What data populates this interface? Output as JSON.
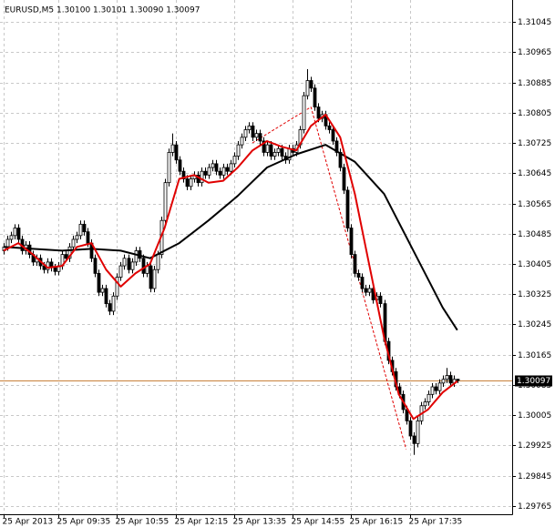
{
  "chart_data": {
    "type": "candlestick",
    "title": "EURUSD,M5  1.30100 1.30101 1.30090 1.30097",
    "up_color": "#ffffff",
    "down_color": "#000000",
    "outline_color": "#000000",
    "grid": true,
    "xlim": [
      -1,
      139
    ],
    "ylim": [
      1.29743,
      1.31103
    ],
    "yticks": [
      1.31045,
      1.30965,
      1.30885,
      1.30805,
      1.30725,
      1.30645,
      1.30565,
      1.30485,
      1.30405,
      1.30325,
      1.30245,
      1.30165,
      1.30085,
      1.30005,
      1.29925,
      1.29845,
      1.29765
    ],
    "xticks": [
      {
        "value": 0,
        "label": "25 Apr 2013"
      },
      {
        "value": 15,
        "label": "25 Apr 09:35"
      },
      {
        "value": 31,
        "label": "25 Apr 10:55"
      },
      {
        "value": 47,
        "label": "25 Apr 12:15"
      },
      {
        "value": 63,
        "label": "25 Apr 13:35"
      },
      {
        "value": 79,
        "label": "25 Apr 14:55"
      },
      {
        "value": 95,
        "label": "25 Apr 16:15"
      },
      {
        "value": 111,
        "label": "25 Apr 17:35"
      }
    ],
    "open": [
      1.3044,
      1.3045,
      1.3047,
      1.3048,
      1.305,
      1.3047,
      1.3044,
      1.30455,
      1.3043,
      1.3041,
      1.3042,
      1.304,
      1.3039,
      1.3041,
      1.30395,
      1.30385,
      1.304,
      1.3043,
      1.3042,
      1.3045,
      1.3047,
      1.3048,
      1.3051,
      1.3049,
      1.3046,
      1.3042,
      1.3038,
      1.3033,
      1.3034,
      1.303,
      1.3028,
      1.3032,
      1.3037,
      1.304,
      1.3042,
      1.3039,
      1.3041,
      1.3044,
      1.3042,
      1.3038,
      1.304,
      1.3034,
      1.3039,
      1.3043,
      1.3052,
      1.3062,
      1.307,
      1.3072,
      1.3068,
      1.3065,
      1.3063,
      1.3061,
      1.3063,
      1.3064,
      1.3062,
      1.3065,
      1.3064,
      1.3066,
      1.3067,
      1.3065,
      1.3064,
      1.3066,
      1.3065,
      1.3067,
      1.3069,
      1.3072,
      1.3074,
      1.3076,
      1.3077,
      1.3074,
      1.3075,
      1.3073,
      1.307,
      1.3072,
      1.3069,
      1.307,
      1.3071,
      1.3069,
      1.3068,
      1.3071,
      1.307,
      1.3072,
      1.3076,
      1.3085,
      1.3089,
      1.3087,
      1.3082,
      1.3079,
      1.308,
      1.3077,
      1.3076,
      1.3073,
      1.307,
      1.3066,
      1.306,
      1.305,
      1.3043,
      1.3038,
      1.3037,
      1.3034,
      1.3033,
      1.3034,
      1.3031,
      1.3032,
      1.303,
      1.302,
      1.3015,
      1.3012,
      1.3008,
      1.3006,
      1.3002,
      1.2999,
      1.2995,
      1.2993,
      1.2999,
      1.3003,
      1.3004,
      1.3006,
      1.3008,
      1.3007,
      1.3009,
      1.301,
      1.3011,
      1.3009,
      1.301
    ],
    "high": [
      1.3046,
      1.3048,
      1.3049,
      1.3051,
      1.3051,
      1.3048,
      1.30465,
      1.30465,
      1.3044,
      1.3043,
      1.3043,
      1.3041,
      1.3042,
      1.3042,
      1.30405,
      1.3041,
      1.3044,
      1.3044,
      1.3046,
      1.3048,
      1.3049,
      1.3052,
      1.3052,
      1.305,
      1.3047,
      1.3043,
      1.3039,
      1.3035,
      1.3035,
      1.3031,
      1.3033,
      1.3038,
      1.3041,
      1.3043,
      1.3043,
      1.3042,
      1.3045,
      1.3045,
      1.3043,
      1.3041,
      1.3041,
      1.304,
      1.3044,
      1.3053,
      1.3063,
      1.3071,
      1.3075,
      1.3073,
      1.3069,
      1.3066,
      1.3064,
      1.3064,
      1.3065,
      1.3065,
      1.3066,
      1.3066,
      1.3067,
      1.3068,
      1.3068,
      1.3066,
      1.3067,
      1.3067,
      1.3068,
      1.307,
      1.3073,
      1.3075,
      1.3077,
      1.3078,
      1.3078,
      1.3076,
      1.3076,
      1.3074,
      1.3073,
      1.3073,
      1.3071,
      1.3072,
      1.3072,
      1.307,
      1.3072,
      1.3072,
      1.3073,
      1.3077,
      1.3086,
      1.3092,
      1.309,
      1.3088,
      1.3083,
      1.3081,
      1.3081,
      1.3078,
      1.3077,
      1.3074,
      1.3071,
      1.3067,
      1.3061,
      1.3051,
      1.3044,
      1.3039,
      1.3038,
      1.3035,
      1.3035,
      1.3035,
      1.3033,
      1.3033,
      1.3031,
      1.3021,
      1.3016,
      1.3013,
      1.3009,
      1.3007,
      1.3003,
      1.3,
      1.2996,
      1.3,
      1.3004,
      1.3005,
      1.3007,
      1.3009,
      1.3009,
      1.301,
      1.3011,
      1.3013,
      1.3012,
      1.3011,
      1.30101
    ],
    "low": [
      1.3043,
      1.3044,
      1.3046,
      1.3047,
      1.3046,
      1.3043,
      1.3043,
      1.3042,
      1.304,
      1.304,
      1.3039,
      1.3038,
      1.3038,
      1.30385,
      1.30375,
      1.30375,
      1.3039,
      1.3041,
      1.3041,
      1.3044,
      1.3046,
      1.3047,
      1.3048,
      1.3045,
      1.3041,
      1.3037,
      1.3032,
      1.3032,
      1.3029,
      1.3027,
      1.3027,
      1.3031,
      1.3036,
      1.3039,
      1.3038,
      1.3038,
      1.304,
      1.3041,
      1.3037,
      1.3037,
      1.3033,
      1.3033,
      1.3038,
      1.3042,
      1.3051,
      1.3061,
      1.3069,
      1.3067,
      1.3064,
      1.3062,
      1.306,
      1.306,
      1.3062,
      1.3061,
      1.3061,
      1.3063,
      1.3063,
      1.3065,
      1.3064,
      1.3063,
      1.3063,
      1.3064,
      1.3064,
      1.3066,
      1.3068,
      1.3071,
      1.3073,
      1.3075,
      1.3073,
      1.3073,
      1.3072,
      1.3069,
      1.3069,
      1.3068,
      1.3068,
      1.3069,
      1.3068,
      1.3067,
      1.3067,
      1.3069,
      1.3069,
      1.3071,
      1.3075,
      1.3084,
      1.3086,
      1.3081,
      1.3078,
      1.3078,
      1.3076,
      1.3075,
      1.3072,
      1.3069,
      1.3065,
      1.3059,
      1.3049,
      1.3042,
      1.3037,
      1.3036,
      1.3033,
      1.3032,
      1.3032,
      1.303,
      1.303,
      1.3029,
      1.3019,
      1.3014,
      1.3011,
      1.3007,
      1.3005,
      1.3001,
      1.2998,
      1.2994,
      1.299,
      1.2992,
      1.2998,
      1.3002,
      1.3003,
      1.3005,
      1.3006,
      1.3006,
      1.3008,
      1.3009,
      1.3008,
      1.3008,
      1.3009
    ],
    "close": [
      1.3045,
      1.3047,
      1.3048,
      1.305,
      1.3047,
      1.3044,
      1.30455,
      1.3043,
      1.3041,
      1.3042,
      1.304,
      1.3039,
      1.3041,
      1.30395,
      1.30385,
      1.304,
      1.3043,
      1.3042,
      1.3045,
      1.3047,
      1.3048,
      1.3051,
      1.3049,
      1.3046,
      1.3042,
      1.3038,
      1.3033,
      1.3034,
      1.303,
      1.3028,
      1.3032,
      1.3037,
      1.304,
      1.3042,
      1.3039,
      1.3041,
      1.3044,
      1.3042,
      1.3038,
      1.304,
      1.3034,
      1.3039,
      1.3043,
      1.3052,
      1.3062,
      1.307,
      1.3072,
      1.3068,
      1.3065,
      1.3063,
      1.3061,
      1.3063,
      1.3064,
      1.3062,
      1.3065,
      1.3064,
      1.3066,
      1.3067,
      1.3065,
      1.3064,
      1.3066,
      1.3065,
      1.3067,
      1.3069,
      1.3072,
      1.3074,
      1.3076,
      1.3077,
      1.3074,
      1.3075,
      1.3073,
      1.307,
      1.3072,
      1.3069,
      1.307,
      1.3071,
      1.3069,
      1.3068,
      1.3071,
      1.307,
      1.3072,
      1.3076,
      1.3085,
      1.3089,
      1.3087,
      1.3082,
      1.3079,
      1.308,
      1.3077,
      1.3076,
      1.3073,
      1.307,
      1.3066,
      1.306,
      1.305,
      1.3043,
      1.3038,
      1.3037,
      1.3034,
      1.3033,
      1.3034,
      1.3031,
      1.3032,
      1.303,
      1.302,
      1.3015,
      1.3012,
      1.3008,
      1.3006,
      1.3002,
      1.2999,
      1.2995,
      1.2993,
      1.2999,
      1.3003,
      1.3004,
      1.3006,
      1.3008,
      1.3007,
      1.3009,
      1.301,
      1.3011,
      1.3009,
      1.301,
      1.30097
    ],
    "lines": [
      {
        "color": "#000000",
        "x": [
          0,
          8,
          16,
          24,
          32,
          40,
          48,
          56,
          64,
          72,
          80,
          88,
          96,
          104,
          112,
          120,
          124
        ],
        "values": [
          1.3045,
          1.30445,
          1.3044,
          1.30445,
          1.3044,
          1.3042,
          1.3046,
          1.3052,
          1.30585,
          1.3066,
          1.30695,
          1.3072,
          1.30675,
          1.3059,
          1.3044,
          1.3029,
          1.3023
        ]
      },
      {
        "color": "#e00000",
        "x": [
          0,
          4,
          8,
          12,
          16,
          20,
          24,
          28,
          32,
          36,
          40,
          44,
          48,
          52,
          56,
          60,
          64,
          68,
          72,
          76,
          80,
          84,
          88,
          92,
          96,
          100,
          104,
          108,
          112,
          116,
          120,
          124
        ],
        "values": [
          1.3044,
          1.3046,
          1.3043,
          1.30395,
          1.304,
          1.3045,
          1.3046,
          1.3039,
          1.30345,
          1.3038,
          1.30405,
          1.305,
          1.3063,
          1.3064,
          1.3062,
          1.30625,
          1.3066,
          1.30705,
          1.3073,
          1.30715,
          1.30705,
          1.3077,
          1.308,
          1.3074,
          1.3059,
          1.304,
          1.3021,
          1.3006,
          1.29995,
          1.3002,
          1.30065,
          1.30095
        ]
      }
    ],
    "zigzag": {
      "color": "#e00000",
      "x": [
        68,
        84,
        110
      ],
      "values": [
        1.30725,
        1.3082,
        1.29915
      ]
    },
    "bid": 1.30097,
    "bid_color": "#c8803a"
  }
}
